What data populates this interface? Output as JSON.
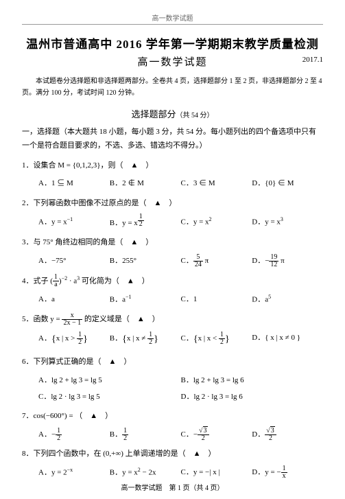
{
  "header": {
    "top": "高一数学试题"
  },
  "title": "温州市普通高中 2016 学年第一学期期末教学质量检测",
  "subtitle": "高一数学试题",
  "date": "2017.1",
  "intro": "本试题卷分选择题和非选择题两部分。全卷共 4 页，选择题部分 1 至 2 页，非选择题部分 2 至 4 页。满分 100 分，考试时间 120 分钟。",
  "section": {
    "title": "选择题部分",
    "sub": "（共 54 分）"
  },
  "stem": {
    "label": "一，",
    "text": "选择题（本大题共 18 小题，每小题 3 分，共 54 分。每小题列出的四个备选项中只有一个是符合题目要求的，不选、多选、错选均不得分。）"
  },
  "q1": {
    "text": "1．设集合 M = {0,1,2,3}，则（　▲　）",
    "A": "A．1 ⊆ M",
    "B": "B．2 ∉ M",
    "C": "C．3 ∈ M",
    "D": "D．{0} ∈ M"
  },
  "q2": {
    "text": "2．下列幂函数中图像不过原点的是（　▲　）",
    "A_pre": "A．y = x",
    "A_sup": "−1",
    "B_pre": "B．y = x",
    "B_num": "1",
    "B_den": "2",
    "C_pre": "C．y = x",
    "C_sup": "2",
    "D_pre": "D．y = x",
    "D_sup": "3"
  },
  "q3": {
    "text": "3．与 75° 角终边相同的角是（　▲　）",
    "A": "A．−75°",
    "B": "B．255°",
    "C_pre": "C．",
    "C_num": "5",
    "C_den": "24",
    "C_suf": " π",
    "D_pre": "D．−",
    "D_num": "19",
    "D_den": "12",
    "D_suf": " π"
  },
  "q4": {
    "text_pre": "4．式子 (",
    "text_num": "1",
    "text_den": "a",
    "text_mid": ")",
    "text_sup1": "−2",
    "text_mid2": " · a",
    "text_sup2": "3",
    "text_suf": " 可化简为（　▲　）",
    "A": "A．a",
    "B_pre": "B．a",
    "B_sup": "−1",
    "C": "C．1",
    "D_pre": "D．a",
    "D_sup": "5"
  },
  "q5": {
    "text_pre": "5．函数 y = ",
    "num": "x",
    "den": "2x − 1",
    "text_suf": " 的定义域是（　▲　）",
    "A_pre": "A．",
    "A_set": "x | x > ",
    "A_num": "1",
    "A_den": "2",
    "B_pre": "B．",
    "B_set": "x | x ≠ ",
    "B_num": "1",
    "B_den": "2",
    "C_pre": "C．",
    "C_set": "x | x < ",
    "C_num": "1",
    "C_den": "2",
    "D_pre": "D．",
    "D_set": "{ x | x ≠ 0 }"
  },
  "q6": {
    "text": "6．下列算式正确的是（　▲　）",
    "A": "A．lg 2 + lg 3 = lg 5",
    "B": "B．lg 2 + lg 3 = lg 6",
    "C": "C．lg 2 · lg 3 = lg 5",
    "D": "D．lg 2 · lg 3 = lg 6"
  },
  "q7": {
    "text": "7．cos(−600°) = （　▲　）",
    "A_pre": "A．−",
    "A_num": "1",
    "A_den": "2",
    "B_pre": "B．",
    "B_num": "1",
    "B_den": "2",
    "C_pre": "C．−",
    "C_rt": "3",
    "C_den": "2",
    "D_pre": "D．",
    "D_rt": "3",
    "D_den": "2"
  },
  "q8": {
    "text": "8．下列四个函数中，在 (0,+∞) 上单调递增的是（　▲　）",
    "A_pre": "A．y = 2",
    "A_sup": "−x",
    "B_pre": "B．y = x",
    "B_sup": "2",
    "B_suf": " − 2x",
    "C": "C．y = −| x |",
    "D_pre": "D．y = −",
    "D_num": "1",
    "D_den": "x"
  },
  "footer": "高一数学试题　第 1 页（共 4 页）"
}
